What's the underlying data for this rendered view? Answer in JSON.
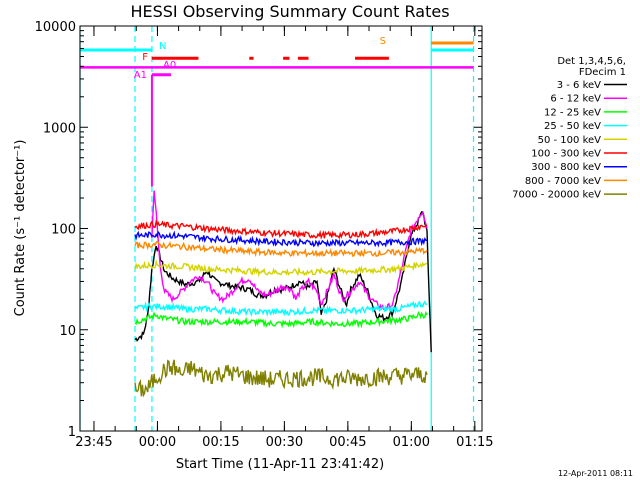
{
  "chart_data": {
    "type": "line",
    "title": "HESSI Observing Summary Count Rates",
    "ylabel": "Count Rate (s⁻¹ detector⁻¹)",
    "xlabel": "Start Time (11-Apr-11 23:41:42)",
    "x_ticks": [
      "23:45",
      "00:00",
      "00:15",
      "00:30",
      "00:45",
      "01:00",
      "01:15"
    ],
    "y_ticks": [
      "1",
      "10",
      "100",
      "1000",
      "10000"
    ],
    "y_scale": "log",
    "ylim": [
      1,
      10000
    ],
    "x_unit": "minutes since 23:41:42",
    "xlim": [
      0,
      95
    ],
    "legend_header": [
      "Det 1,3,4,5,6,",
      "FDecim 1"
    ],
    "legend_position": "right",
    "timestamp": "12-Apr-2011 08:11",
    "series": [
      {
        "name": "3 - 6 keV",
        "color": "#000000",
        "points": [
          [
            13,
            8
          ],
          [
            15,
            9
          ],
          [
            16,
            14
          ],
          [
            17,
            40
          ],
          [
            18,
            70
          ],
          [
            20,
            38
          ],
          [
            22,
            32
          ],
          [
            25,
            28
          ],
          [
            28,
            30
          ],
          [
            30,
            38
          ],
          [
            32,
            30
          ],
          [
            36,
            27
          ],
          [
            38,
            26
          ],
          [
            40,
            25
          ],
          [
            42,
            22
          ],
          [
            44,
            22
          ],
          [
            46,
            25
          ],
          [
            48,
            25
          ],
          [
            50,
            27
          ],
          [
            52,
            30
          ],
          [
            54,
            26
          ],
          [
            56,
            30
          ],
          [
            57,
            14
          ],
          [
            58,
            18
          ],
          [
            60,
            40
          ],
          [
            62,
            22
          ],
          [
            63,
            18
          ],
          [
            64,
            25
          ],
          [
            66,
            35
          ],
          [
            68,
            24
          ],
          [
            70,
            14
          ],
          [
            72,
            13
          ],
          [
            74,
            15
          ],
          [
            76,
            30
          ],
          [
            78,
            80
          ],
          [
            80,
            120
          ],
          [
            81,
            150
          ],
          [
            82,
            90
          ],
          [
            83,
            6
          ]
        ]
      },
      {
        "name": "6 - 12 keV",
        "color": "#ff00ff",
        "points": [
          [
            17,
            80
          ],
          [
            17.5,
            250
          ],
          [
            18,
            140
          ],
          [
            19,
            40
          ],
          [
            20,
            24
          ],
          [
            22,
            20
          ],
          [
            24,
            24
          ],
          [
            26,
            30
          ],
          [
            28,
            34
          ],
          [
            30,
            30
          ],
          [
            32,
            22
          ],
          [
            34,
            20
          ],
          [
            36,
            24
          ],
          [
            38,
            30
          ],
          [
            40,
            32
          ],
          [
            42,
            24
          ],
          [
            44,
            22
          ],
          [
            46,
            24
          ],
          [
            48,
            27
          ],
          [
            50,
            25
          ],
          [
            51,
            20
          ],
          [
            52,
            24
          ],
          [
            54,
            30
          ],
          [
            56,
            24
          ],
          [
            57,
            18
          ],
          [
            58,
            22
          ],
          [
            60,
            35
          ],
          [
            62,
            20
          ],
          [
            64,
            24
          ],
          [
            66,
            30
          ],
          [
            68,
            22
          ],
          [
            70,
            18
          ],
          [
            72,
            16
          ],
          [
            74,
            18
          ],
          [
            76,
            40
          ],
          [
            78,
            90
          ],
          [
            80,
            130
          ],
          [
            81,
            150
          ],
          [
            82,
            100
          ]
        ]
      },
      {
        "name": "12 - 25 keV",
        "color": "#00ff00",
        "points": [
          [
            13,
            12
          ],
          [
            16,
            13
          ],
          [
            18,
            14
          ],
          [
            20,
            13
          ],
          [
            25,
            12
          ],
          [
            30,
            12
          ],
          [
            35,
            12
          ],
          [
            40,
            12
          ],
          [
            45,
            11.5
          ],
          [
            50,
            11.5
          ],
          [
            55,
            12
          ],
          [
            60,
            11.5
          ],
          [
            65,
            11.5
          ],
          [
            70,
            12
          ],
          [
            75,
            12.5
          ],
          [
            78,
            13
          ],
          [
            80,
            14
          ],
          [
            82,
            14
          ]
        ]
      },
      {
        "name": "25 - 50 keV",
        "color": "#00ffff",
        "points": [
          [
            13,
            16
          ],
          [
            16,
            17
          ],
          [
            18,
            17
          ],
          [
            20,
            17
          ],
          [
            25,
            16
          ],
          [
            30,
            16
          ],
          [
            35,
            15.5
          ],
          [
            40,
            15
          ],
          [
            45,
            15
          ],
          [
            50,
            15
          ],
          [
            55,
            15.5
          ],
          [
            60,
            15.5
          ],
          [
            65,
            15.5
          ],
          [
            70,
            16
          ],
          [
            75,
            16
          ],
          [
            78,
            17
          ],
          [
            80,
            18
          ],
          [
            82,
            18
          ]
        ]
      },
      {
        "name": "50 - 100 keV",
        "color": "#d4d400",
        "points": [
          [
            13,
            42
          ],
          [
            16,
            43
          ],
          [
            18,
            44
          ],
          [
            20,
            43
          ],
          [
            25,
            42
          ],
          [
            30,
            40
          ],
          [
            35,
            39
          ],
          [
            40,
            38
          ],
          [
            45,
            37
          ],
          [
            50,
            37
          ],
          [
            55,
            37
          ],
          [
            60,
            38
          ],
          [
            65,
            38
          ],
          [
            70,
            39
          ],
          [
            75,
            40
          ],
          [
            78,
            42
          ],
          [
            80,
            44
          ],
          [
            82,
            45
          ]
        ]
      },
      {
        "name": "100 - 300 keV",
        "color": "#ff0000",
        "points": [
          [
            13,
            105
          ],
          [
            16,
            108
          ],
          [
            18,
            110
          ],
          [
            20,
            108
          ],
          [
            25,
            105
          ],
          [
            30,
            100
          ],
          [
            35,
            96
          ],
          [
            40,
            93
          ],
          [
            45,
            90
          ],
          [
            50,
            88
          ],
          [
            55,
            86
          ],
          [
            60,
            86
          ],
          [
            65,
            87
          ],
          [
            70,
            90
          ],
          [
            75,
            95
          ],
          [
            78,
            100
          ],
          [
            80,
            104
          ],
          [
            82,
            108
          ]
        ]
      },
      {
        "name": "300 - 800 keV",
        "color": "#0000ff",
        "points": [
          [
            13,
            85
          ],
          [
            16,
            86
          ],
          [
            18,
            88
          ],
          [
            20,
            86
          ],
          [
            25,
            84
          ],
          [
            30,
            80
          ],
          [
            35,
            78
          ],
          [
            40,
            76
          ],
          [
            45,
            74
          ],
          [
            50,
            73
          ],
          [
            55,
            72
          ],
          [
            60,
            72
          ],
          [
            65,
            72
          ],
          [
            70,
            72
          ],
          [
            75,
            73
          ],
          [
            78,
            74
          ],
          [
            80,
            75
          ],
          [
            82,
            76
          ]
        ]
      },
      {
        "name": "800 - 7000 keV",
        "color": "#ff8800",
        "points": [
          [
            13,
            68
          ],
          [
            16,
            69
          ],
          [
            18,
            70
          ],
          [
            20,
            68
          ],
          [
            25,
            66
          ],
          [
            30,
            63
          ],
          [
            35,
            61
          ],
          [
            40,
            59
          ],
          [
            45,
            58
          ],
          [
            50,
            57
          ],
          [
            55,
            57
          ],
          [
            60,
            57
          ],
          [
            65,
            57
          ],
          [
            70,
            57
          ],
          [
            75,
            58
          ],
          [
            78,
            59
          ],
          [
            80,
            60
          ],
          [
            82,
            61
          ]
        ]
      },
      {
        "name": "7000 - 20000 keV",
        "color": "#808000",
        "points": [
          [
            13,
            2.5
          ],
          [
            16,
            2.6
          ],
          [
            18,
            3.4
          ],
          [
            20,
            4
          ],
          [
            22,
            4.3
          ],
          [
            24,
            3.6
          ],
          [
            26,
            4.2
          ],
          [
            28,
            3.8
          ],
          [
            30,
            3.5
          ],
          [
            35,
            3.8
          ],
          [
            40,
            3.4
          ],
          [
            45,
            3.2
          ],
          [
            50,
            3.3
          ],
          [
            55,
            3.4
          ],
          [
            60,
            3.3
          ],
          [
            65,
            3.3
          ],
          [
            70,
            3.4
          ],
          [
            75,
            3.5
          ],
          [
            80,
            3.6
          ],
          [
            82,
            3.6
          ]
        ]
      }
    ],
    "state_bars": [
      {
        "label": "N",
        "color": "#00ffff",
        "y": 5800,
        "segments": [
          [
            0,
            17
          ],
          [
            83,
            93
          ]
        ]
      },
      {
        "label": "S",
        "color": "#ff8800",
        "y": 6800,
        "segments": [
          [
            83,
            93
          ]
        ]
      },
      {
        "label": "F",
        "color": "#ff0000",
        "y": 4800,
        "segments": [
          [
            17,
            28
          ],
          [
            40,
            41
          ],
          [
            48,
            49.5
          ],
          [
            51.5,
            54
          ],
          [
            65,
            73
          ]
        ]
      },
      {
        "label": "A0",
        "color": "#ff00ff",
        "y": 4200,
        "segments": []
      },
      {
        "label": "A1",
        "color": "#ff00ff",
        "y": 3300,
        "segments": [
          [
            17,
            21.5
          ]
        ]
      }
    ],
    "attenuator_line": {
      "color": "#ff00ff",
      "y": 3900,
      "segments": [
        [
          0,
          93
        ]
      ]
    },
    "vertical_lines": [
      {
        "x": 0,
        "color": "#00ffff",
        "style": "solid"
      },
      {
        "x": 13,
        "color": "#00ffff",
        "style": "dashed"
      },
      {
        "x": 17,
        "color": "#00ffff",
        "style": "dashed"
      },
      {
        "x": 83,
        "color": "#00ffff",
        "style": "solid"
      },
      {
        "x": 93,
        "color": "#00ffff",
        "style": "dashed"
      }
    ]
  }
}
